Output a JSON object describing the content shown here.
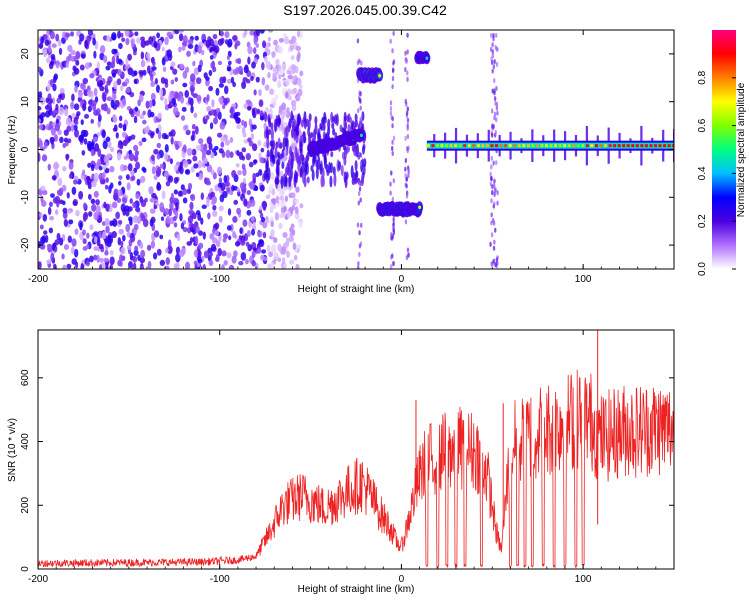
{
  "title": "S197.2026.045.00.39.C42",
  "chart_data": [
    {
      "type": "heatmap",
      "xlabel": "Height of straight line (km)",
      "ylabel": "Frequency (Hz)",
      "xlim": [
        -200,
        150
      ],
      "ylim": [
        -25,
        25
      ],
      "xticks": [
        -200,
        -100,
        0,
        100
      ],
      "yticks": [
        -20,
        -10,
        0,
        10,
        20
      ],
      "colorbar": {
        "label": "Normalized spectral amplitude",
        "range": [
          0,
          1
        ],
        "ticks": [
          0.0,
          0.2,
          0.4,
          0.6,
          0.8
        ],
        "tick_labels": [
          "0.0",
          "0.2",
          "0.4",
          "0.6",
          "0.8"
        ],
        "colormap": [
          "#ffffff",
          "#b070ff",
          "#4a00e0",
          "#0000ff",
          "#00c0ff",
          "#00ff80",
          "#80ff00",
          "#ffff00",
          "#ff8000",
          "#ff0000",
          "#ff0080"
        ]
      },
      "features": [
        {
          "x_range": [
            -200,
            -75
          ],
          "freq_range": [
            -25,
            25
          ],
          "kind": "diffuse noise",
          "amplitude": 0.2
        },
        {
          "x_range": [
            -75,
            -22
          ],
          "freq_center": 0,
          "kind": "band rising to ~3 Hz",
          "amplitude": 0.35
        },
        {
          "x_range": [
            -23,
            -12
          ],
          "freq_center": 15.5,
          "kind": "tone",
          "amplitude": 0.7
        },
        {
          "x_range": [
            -12,
            10
          ],
          "freq_center": -12.5,
          "kind": "tone",
          "amplitude": 0.65
        },
        {
          "x_range": [
            9,
            14
          ],
          "freq_center": 19.5,
          "kind": "tone",
          "amplitude": 0.5
        },
        {
          "x_range": [
            14,
            150
          ],
          "freq_center": 0.8,
          "kind": "steady line",
          "amplitude": 0.75
        }
      ]
    },
    {
      "type": "line",
      "xlabel": "Height of straight line (km)",
      "ylabel": "SNR (10 * v/v)",
      "xlim": [
        -200,
        150
      ],
      "ylim": [
        0,
        750
      ],
      "xticks": [
        -200,
        -100,
        0,
        100
      ],
      "yticks": [
        0,
        200,
        400,
        600
      ],
      "color": "#ee2222",
      "series": [
        {
          "x": [
            -200,
            -150,
            -110,
            -90,
            -80,
            -72,
            -65,
            -55,
            -48,
            -42,
            -35,
            -28,
            -22,
            -18,
            -14,
            -10,
            -6,
            -4,
            -2,
            0,
            2,
            5,
            8,
            10,
            12,
            15,
            20,
            25,
            30,
            35,
            40,
            44,
            47,
            50,
            52,
            55,
            60,
            65,
            70,
            75,
            80,
            85,
            90,
            95,
            100,
            103,
            105,
            108,
            110,
            115,
            120,
            125,
            130,
            135,
            140,
            145,
            150
          ],
          "y": [
            18,
            20,
            22,
            28,
            40,
            120,
            200,
            230,
            210,
            190,
            220,
            250,
            270,
            240,
            200,
            160,
            130,
            100,
            80,
            70,
            110,
            180,
            250,
            290,
            320,
            340,
            360,
            370,
            385,
            380,
            370,
            350,
            300,
            200,
            120,
            60,
            390,
            400,
            420,
            430,
            440,
            450,
            460,
            470,
            480,
            470,
            460,
            420,
            410,
            420,
            430,
            440,
            435,
            440,
            445,
            440,
            440
          ]
        }
      ],
      "dropouts": [
        14,
        20,
        25,
        30,
        35,
        44,
        60,
        64,
        68,
        72,
        78,
        84,
        90,
        96,
        100
      ],
      "spikes": [
        {
          "x": 108,
          "y": 760
        },
        {
          "x": 108,
          "y": 140
        },
        {
          "x": 8,
          "y": 530
        },
        {
          "x": 56,
          "y": 520
        }
      ]
    }
  ]
}
